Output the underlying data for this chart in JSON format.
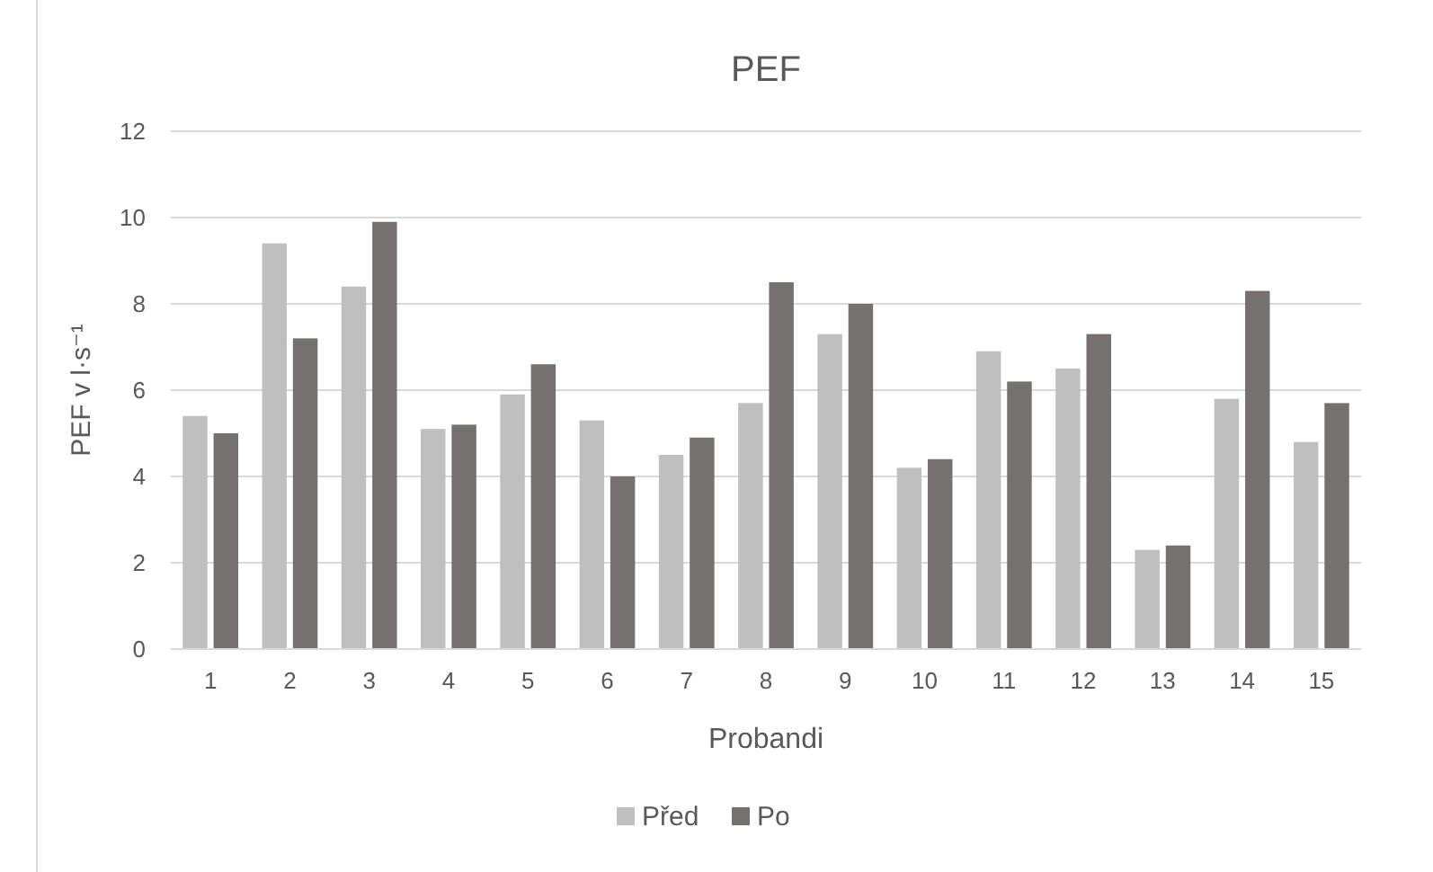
{
  "chart_data": {
    "type": "bar",
    "title": "PEF",
    "xlabel": "Probandi",
    "ylabel": "PEF v l·s⁻¹",
    "categories": [
      "1",
      "2",
      "3",
      "4",
      "5",
      "6",
      "7",
      "8",
      "9",
      "10",
      "11",
      "12",
      "13",
      "14",
      "15"
    ],
    "series": [
      {
        "name": "Před",
        "color": "#bfbfbf",
        "values": [
          5.4,
          9.4,
          8.4,
          5.1,
          5.9,
          5.3,
          4.5,
          5.7,
          7.3,
          4.2,
          6.9,
          6.5,
          2.3,
          5.8,
          4.8
        ]
      },
      {
        "name": "Po",
        "color": "#767171",
        "values": [
          5.0,
          7.2,
          9.9,
          5.2,
          6.6,
          4.0,
          4.9,
          8.5,
          8.0,
          4.4,
          6.2,
          7.3,
          2.4,
          8.3,
          5.7
        ]
      }
    ],
    "ylim": [
      0,
      12
    ],
    "yticks": [
      0,
      2,
      4,
      6,
      8,
      10,
      12
    ],
    "grid": "y",
    "legend": "bottom"
  }
}
